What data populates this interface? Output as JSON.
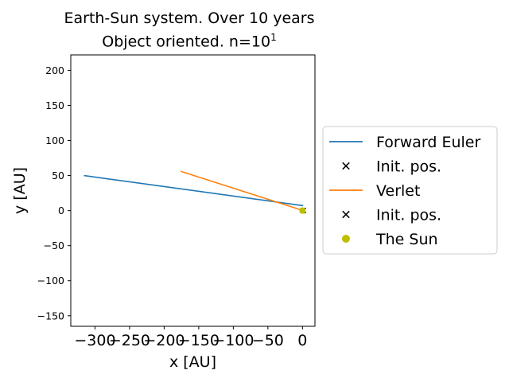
{
  "chart_data": {
    "type": "line",
    "title_line1": "Earth-Sun system. Over 10 years",
    "title_line2_prefix": "Object oriented. n=10",
    "title_line2_exponent": "1",
    "xlabel": "x [AU]",
    "ylabel": "y [AU]",
    "xlim": [
      -335,
      18
    ],
    "ylim": [
      -165,
      222
    ],
    "x_ticks": [
      -300,
      -250,
      -200,
      -150,
      -100,
      -50,
      0
    ],
    "x_tick_labels": [
      "−300",
      "−250",
      "−200",
      "−150",
      "−100",
      "−50",
      "0"
    ],
    "y_ticks": [
      -150,
      -100,
      -50,
      0,
      50,
      100,
      150,
      200
    ],
    "y_tick_labels": [
      "−150",
      "−100",
      "−50",
      "0",
      "50",
      "100",
      "150",
      "200"
    ],
    "grid": false,
    "legend_position": "right-outside",
    "series": [
      {
        "name": "Forward Euler",
        "kind": "line",
        "color": "#1f77b4",
        "x": [
          1,
          -316
        ],
        "y": [
          7,
          50
        ]
      },
      {
        "name": "Init. pos.",
        "kind": "marker-x",
        "color": "#000000",
        "x": [
          1
        ],
        "y": [
          0
        ]
      },
      {
        "name": "Verlet",
        "kind": "line",
        "color": "#ff7f0e",
        "x": [
          1,
          -176
        ],
        "y": [
          0,
          56
        ]
      },
      {
        "name": "Init. pos.",
        "kind": "marker-x",
        "color": "#000000",
        "x": [
          1
        ],
        "y": [
          0
        ]
      },
      {
        "name": "The Sun",
        "kind": "marker-dot",
        "color": "#bfbf00",
        "x": [
          0
        ],
        "y": [
          0
        ]
      }
    ]
  }
}
